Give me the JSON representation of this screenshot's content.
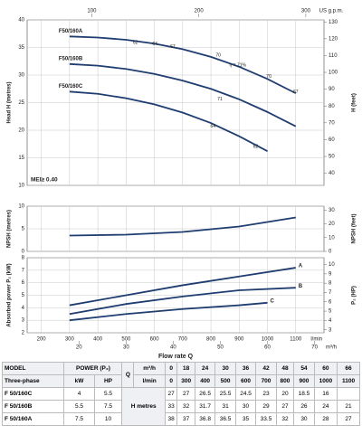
{
  "chart_data": [
    {
      "type": "line",
      "ylabel": "Head H (metres)",
      "y2label": "H (feet)",
      "xlim": [
        150,
        1200
      ],
      "xticks": [
        200,
        300,
        400,
        500,
        600,
        700,
        800,
        900,
        1000,
        1100
      ],
      "ylim": [
        10,
        40
      ],
      "yticks": [
        10,
        15,
        20,
        25,
        30,
        35,
        40
      ],
      "y2lim": [
        32.8,
        131.2
      ],
      "y2ticks": [
        40,
        50,
        60,
        70,
        80,
        90,
        100,
        110,
        120,
        130
      ],
      "x2lim": [
        39.6,
        317
      ],
      "x2ticks": [
        100,
        200,
        300
      ],
      "x2unit": "US g.p.m.",
      "x2_position": "top",
      "grid": true,
      "name_position": "start",
      "note": "MEI≥ 0.40",
      "series": [
        {
          "name": "F50/160A",
          "color": "#1f3d70",
          "x": [
            300,
            400,
            500,
            600,
            700,
            800,
            900,
            1000,
            1100
          ],
          "values": [
            37,
            36.8,
            36.4,
            35.7,
            34.7,
            33.3,
            31.5,
            29.3,
            26.7
          ]
        },
        {
          "name": "F50/160B",
          "color": "#1f3d70",
          "x": [
            300,
            400,
            500,
            600,
            700,
            800,
            900,
            1000,
            1100
          ],
          "values": [
            32,
            31.7,
            31.1,
            30.2,
            29,
            27.5,
            25.6,
            23.3,
            20.7
          ]
        },
        {
          "name": "F50/160C",
          "color": "#1f3d70",
          "x": [
            300,
            400,
            500,
            600,
            700,
            800,
            900,
            1000
          ],
          "values": [
            27,
            26.6,
            25.8,
            24.7,
            23.2,
            21.3,
            18.9,
            16.2
          ]
        }
      ],
      "annotations": [
        {
          "text": "62",
          "x": 533,
          "y": 35.9
        },
        {
          "text": "64",
          "x": 602,
          "y": 35.6
        },
        {
          "text": "67",
          "x": 665,
          "y": 35.1
        },
        {
          "text": "70",
          "x": 826,
          "y": 33.6
        },
        {
          "text": "η = 71%",
          "x": 895,
          "y": 31.8
        },
        {
          "text": "70",
          "x": 1005,
          "y": 29.7
        },
        {
          "text": "67",
          "x": 1100,
          "y": 26.9
        },
        {
          "text": "71",
          "x": 832,
          "y": 25.6
        },
        {
          "text": "64",
          "x": 807,
          "y": 20.7
        },
        {
          "text": "62",
          "x": 958,
          "y": 17
        }
      ]
    },
    {
      "type": "line",
      "ylabel": "NPSH (metres)",
      "y2label": "NPSH (feet)",
      "xlim": [
        150,
        1200
      ],
      "xticks": [
        200,
        300,
        400,
        500,
        600,
        700,
        800,
        900,
        1000,
        1100
      ],
      "ylim": [
        0,
        10
      ],
      "yticks": [
        0,
        5,
        10
      ],
      "y2lim": [
        0,
        32.8
      ],
      "y2ticks": [
        0,
        10,
        20,
        30
      ],
      "grid": true,
      "series": [
        {
          "color": "#1f3d70",
          "x": [
            300,
            500,
            700,
            900,
            1100
          ],
          "values": [
            3.5,
            3.7,
            4.3,
            5.5,
            7.5
          ]
        }
      ]
    },
    {
      "type": "line",
      "ylabel": "Absorbed power P₂ (kW)",
      "y2label": "P₂ (HP)",
      "xlim": [
        150,
        1200
      ],
      "xticks": [
        200,
        300,
        400,
        500,
        600,
        700,
        800,
        900,
        1000,
        1100
      ],
      "xunit": "l/min",
      "xlabel": "Flow rate Q",
      "ylim": [
        2,
        8
      ],
      "yticks": [
        2,
        3,
        4,
        5,
        6,
        7,
        8
      ],
      "y2lim": [
        2.68,
        10.73
      ],
      "y2ticks": [
        3,
        4,
        5,
        6,
        7,
        8,
        9,
        10
      ],
      "x2lim": [
        9,
        72
      ],
      "x2ticks": [
        20,
        30,
        40,
        50,
        60,
        70
      ],
      "x2unit": "m³/h",
      "x2_position": "bottom",
      "grid": true,
      "name_position": "end",
      "series": [
        {
          "name": "A",
          "color": "#1f3d70",
          "x": [
            300,
            500,
            700,
            900,
            1100
          ],
          "values": [
            4.2,
            5,
            5.8,
            6.5,
            7.2
          ]
        },
        {
          "name": "B",
          "color": "#1f3d70",
          "x": [
            300,
            500,
            700,
            900,
            1100
          ],
          "values": [
            3.5,
            4.3,
            4.9,
            5.4,
            5.6
          ]
        },
        {
          "name": "C",
          "color": "#1f3d70",
          "x": [
            300,
            500,
            700,
            900,
            1000
          ],
          "values": [
            3,
            3.5,
            3.9,
            4.2,
            4.4
          ]
        }
      ]
    }
  ],
  "table": {
    "model": "MODEL",
    "phase": "Three-phase",
    "power": "POWER (P₂)",
    "kw": "kW",
    "hp": "HP",
    "q": "Q",
    "m3h": "m³/h",
    "lmin": "l/min",
    "h": "H",
    "metres": "metres",
    "q_m3h": [
      0,
      18,
      24,
      30,
      36,
      42,
      48,
      54,
      60,
      66
    ],
    "q_lmin": [
      0,
      300,
      400,
      500,
      600,
      700,
      800,
      900,
      1000,
      1100
    ],
    "rows": [
      {
        "model": "F 50/160C",
        "kw": 4,
        "hp": 5.5,
        "h": [
          27,
          27,
          26.5,
          25.5,
          24.5,
          23,
          20,
          18.5,
          16,
          null
        ]
      },
      {
        "model": "F 50/160B",
        "kw": 5.5,
        "hp": 7.5,
        "h": [
          33,
          32,
          31.7,
          31,
          30,
          29,
          27,
          26,
          24,
          21
        ]
      },
      {
        "model": "F 50/160A",
        "kw": 7.5,
        "hp": 10,
        "h": [
          38,
          37,
          36.8,
          36.5,
          35,
          33.5,
          32,
          30,
          28,
          27
        ]
      }
    ]
  }
}
